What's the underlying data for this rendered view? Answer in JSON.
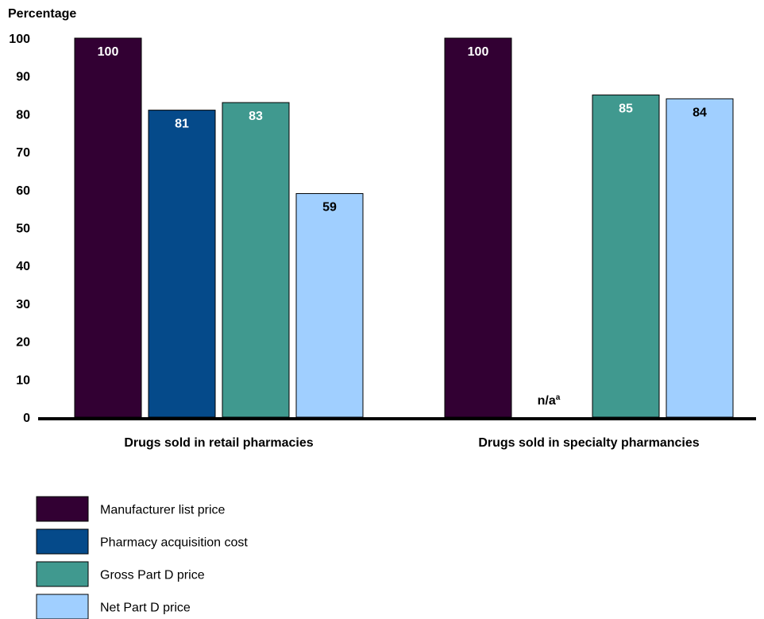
{
  "chart_data": {
    "type": "bar",
    "ylabel": "Percentage",
    "ylim": [
      0,
      100
    ],
    "yticks": [
      0,
      10,
      20,
      30,
      40,
      50,
      60,
      70,
      80,
      90,
      100
    ],
    "grid": false,
    "legend_position": "bottom-left",
    "categories": [
      "Drugs sold in retail pharmacies",
      "Drugs sold in specialty pharmancies"
    ],
    "series": [
      {
        "name": "Manufacturer list price",
        "color": "#320033",
        "label_color": "#ffffff",
        "values": [
          100,
          100
        ]
      },
      {
        "name": "Pharmacy acquisition cost",
        "color": "#054a8a",
        "label_color": "#ffffff",
        "values": [
          81,
          null
        ]
      },
      {
        "name": "Gross Part D price",
        "color": "#40998f",
        "label_color": "#ffffff",
        "values": [
          83,
          85
        ]
      },
      {
        "name": "Net Part D price",
        "color": "#a0cfff",
        "label_color": "#000000",
        "values": [
          59,
          84
        ]
      }
    ],
    "missing_label": "n/a",
    "missing_label_sup": "a"
  }
}
